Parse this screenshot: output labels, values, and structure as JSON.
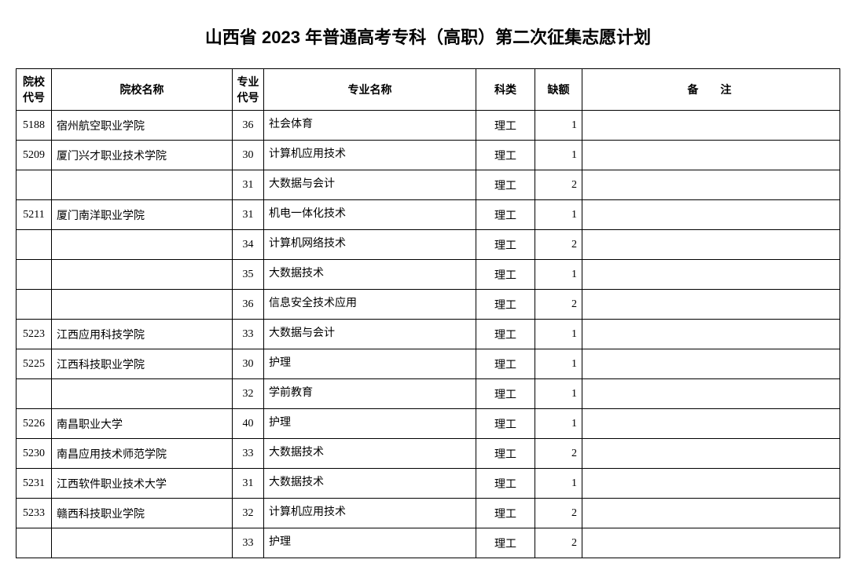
{
  "title": "山西省 2023 年普通高考专科（高职）第二次征集志愿计划",
  "headers": {
    "school_code": "院校代号",
    "school_name": "院校名称",
    "major_code": "专业代号",
    "major_name": "专业名称",
    "category": "科类",
    "vacancy": "缺额",
    "remark": "备注"
  },
  "rows": [
    {
      "school_code": "5188",
      "school_name": "宿州航空职业学院",
      "major_code": "36",
      "major_name": "社会体育",
      "category": "理工",
      "vacancy": "1",
      "remark": ""
    },
    {
      "school_code": "5209",
      "school_name": "厦门兴才职业技术学院",
      "major_code": "30",
      "major_name": "计算机应用技术",
      "category": "理工",
      "vacancy": "1",
      "remark": ""
    },
    {
      "school_code": "",
      "school_name": "",
      "major_code": "31",
      "major_name": "大数据与会计",
      "category": "理工",
      "vacancy": "2",
      "remark": ""
    },
    {
      "school_code": "5211",
      "school_name": "厦门南洋职业学院",
      "major_code": "31",
      "major_name": "机电一体化技术",
      "category": "理工",
      "vacancy": "1",
      "remark": ""
    },
    {
      "school_code": "",
      "school_name": "",
      "major_code": "34",
      "major_name": "计算机网络技术",
      "category": "理工",
      "vacancy": "2",
      "remark": ""
    },
    {
      "school_code": "",
      "school_name": "",
      "major_code": "35",
      "major_name": "大数据技术",
      "category": "理工",
      "vacancy": "1",
      "remark": ""
    },
    {
      "school_code": "",
      "school_name": "",
      "major_code": "36",
      "major_name": "信息安全技术应用",
      "category": "理工",
      "vacancy": "2",
      "remark": ""
    },
    {
      "school_code": "5223",
      "school_name": "江西应用科技学院",
      "major_code": "33",
      "major_name": "大数据与会计",
      "category": "理工",
      "vacancy": "1",
      "remark": ""
    },
    {
      "school_code": "5225",
      "school_name": "江西科技职业学院",
      "major_code": "30",
      "major_name": "护理",
      "category": "理工",
      "vacancy": "1",
      "remark": ""
    },
    {
      "school_code": "",
      "school_name": "",
      "major_code": "32",
      "major_name": "学前教育",
      "category": "理工",
      "vacancy": "1",
      "remark": ""
    },
    {
      "school_code": "5226",
      "school_name": "南昌职业大学",
      "major_code": "40",
      "major_name": "护理",
      "category": "理工",
      "vacancy": "1",
      "remark": ""
    },
    {
      "school_code": "5230",
      "school_name": "南昌应用技术师范学院",
      "major_code": "33",
      "major_name": "大数据技术",
      "category": "理工",
      "vacancy": "2",
      "remark": ""
    },
    {
      "school_code": "5231",
      "school_name": "江西软件职业技术大学",
      "major_code": "31",
      "major_name": "大数据技术",
      "category": "理工",
      "vacancy": "1",
      "remark": ""
    },
    {
      "school_code": "5233",
      "school_name": "赣西科技职业学院",
      "major_code": "32",
      "major_name": "计算机应用技术",
      "category": "理工",
      "vacancy": "2",
      "remark": ""
    },
    {
      "school_code": "",
      "school_name": "",
      "major_code": "33",
      "major_name": "护理",
      "category": "理工",
      "vacancy": "2",
      "remark": ""
    }
  ]
}
